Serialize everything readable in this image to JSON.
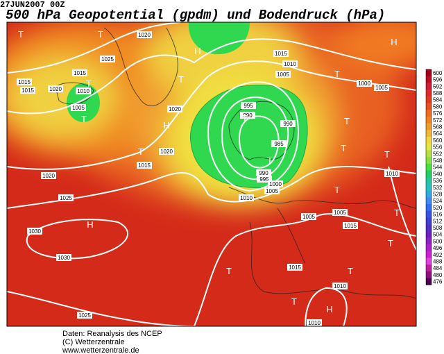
{
  "header": {
    "timestamp": "27JUN2007 00Z",
    "title": "500 hPa Geopotential (gpdm) und Bodendruck (hPa)"
  },
  "colorbar": {
    "ticks": [
      600,
      596,
      592,
      588,
      584,
      580,
      576,
      572,
      568,
      564,
      560,
      556,
      552,
      548,
      544,
      540,
      536,
      532,
      528,
      524,
      520,
      516,
      512,
      508,
      504,
      500,
      496,
      492,
      488,
      484,
      480,
      476
    ],
    "colors": [
      "#a0001c",
      "#c00a22",
      "#d01c38",
      "#e02a2a",
      "#e03c1c",
      "#e85020",
      "#f06a20",
      "#f08420",
      "#f09c2c",
      "#f0b834",
      "#f0d83c",
      "#e0e840",
      "#b8e040",
      "#88e040",
      "#48e040",
      "#20d060",
      "#20c8a0",
      "#28c0c4",
      "#30a8e4",
      "#3c8cf0",
      "#3070f0",
      "#3454e0",
      "#4040d0",
      "#5030c0",
      "#6c20c0",
      "#8c20c4",
      "#ac20d0",
      "#cc20d0",
      "#e040e0",
      "#c020a0",
      "#901080",
      "#500050"
    ]
  },
  "map": {
    "isobar_labels": [
      1020,
      1025,
      1015,
      1010,
      1005,
      1000,
      1005,
      1015,
      1015,
      1020,
      1010,
      1005,
      1015,
      995,
      990,
      990,
      985,
      990,
      995,
      1000,
      1005,
      1010,
      1020,
      1020,
      1020,
      1015,
      1025,
      1030,
      1030,
      1025,
      1010,
      1005,
      1005,
      1015,
      1015,
      1010,
      1010
    ],
    "pressure_centers": [
      "T",
      "T",
      "H",
      "H",
      "T",
      "T",
      "T",
      "H",
      "T",
      "T",
      "T",
      "T",
      "T",
      "T",
      "T",
      "T",
      "T",
      "H",
      "T",
      "T",
      "H",
      "T",
      "T"
    ]
  },
  "footer": {
    "lines": [
      "Daten: Reanalysis des NCEP",
      "(C) Wetterzentrale",
      "www.wetterzentrale.de"
    ]
  }
}
